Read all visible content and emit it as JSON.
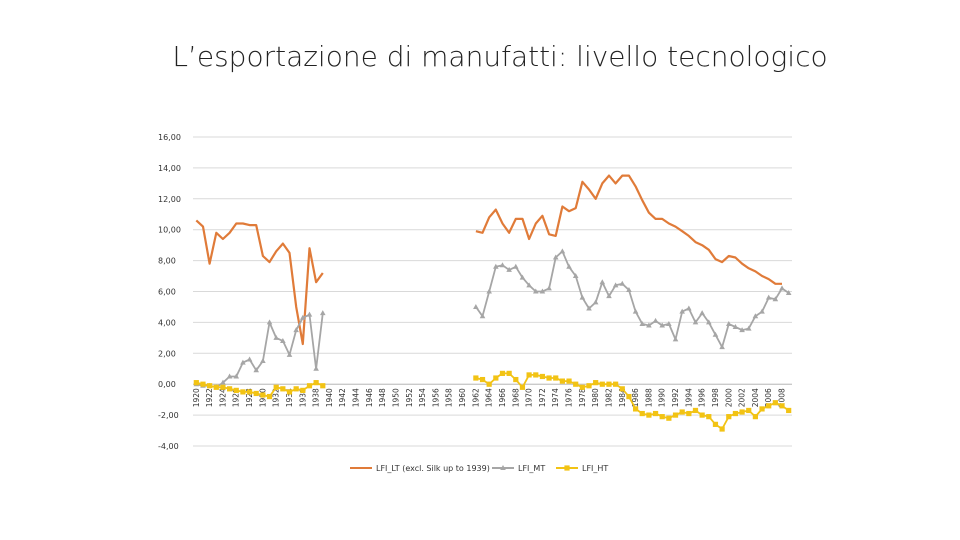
{
  "page": {
    "title": "L’esportazione di manufatti: livello tecnologico"
  },
  "chart_data": {
    "type": "line",
    "title": "L’esportazione di manufatti: livello tecnologico",
    "xlabel": "",
    "ylabel": "",
    "ylim": [
      -4,
      16
    ],
    "yticks": [
      -4,
      -2,
      0,
      2,
      4,
      6,
      8,
      10,
      12,
      14,
      16
    ],
    "ytick_labels": [
      "-4,00",
      "-2,00",
      "0,00",
      "2,00",
      "4,00",
      "6,00",
      "8,00",
      "10,00",
      "12,00",
      "14,00",
      "16,00"
    ],
    "xlim": [
      1920,
      2009
    ],
    "xtick_labels": [
      "1920",
      "1922",
      "1924",
      "1926",
      "1928",
      "1930",
      "1932",
      "1934",
      "1936",
      "1938",
      "1940",
      "1942",
      "1944",
      "1946",
      "1948",
      "1950",
      "1952",
      "1954",
      "1956",
      "1958",
      "1960",
      "1962",
      "1964",
      "1966",
      "1968",
      "1970",
      "1972",
      "1974",
      "1976",
      "1978",
      "1980",
      "1982",
      "1984",
      "1986",
      "1988",
      "1990",
      "1992",
      "1994",
      "1996",
      "1998",
      "2000",
      "2002",
      "2004",
      "2006",
      "2008"
    ],
    "colors": {
      "LT": "#e07b39",
      "MT": "#a6a6a6",
      "HT": "#f2c314",
      "axis": "#d9d9d9"
    },
    "series": [
      {
        "name": "LFI_LT (excl. Silk up to 1939)",
        "key": "LT",
        "marker": "none",
        "x": [
          1920,
          1921,
          1922,
          1923,
          1924,
          1925,
          1926,
          1927,
          1928,
          1929,
          1930,
          1931,
          1932,
          1933,
          1934,
          1935,
          1936,
          1937,
          1938,
          1939,
          1962,
          1963,
          1964,
          1965,
          1966,
          1967,
          1968,
          1969,
          1970,
          1971,
          1972,
          1973,
          1974,
          1975,
          1976,
          1977,
          1978,
          1979,
          1980,
          1981,
          1982,
          1983,
          1984,
          1985,
          1986,
          1987,
          1988,
          1989,
          1990,
          1991,
          1992,
          1993,
          1994,
          1995,
          1996,
          1997,
          1998,
          1999,
          2000,
          2001,
          2002,
          2003,
          2004,
          2005,
          2006,
          2007,
          2008
        ],
        "values": [
          10.6,
          10.2,
          7.8,
          9.8,
          9.4,
          9.8,
          10.4,
          10.4,
          10.3,
          10.3,
          8.3,
          7.9,
          8.6,
          9.1,
          8.5,
          5.0,
          2.6,
          8.8,
          6.6,
          7.2,
          9.9,
          9.8,
          10.8,
          11.3,
          10.4,
          9.8,
          10.7,
          10.7,
          9.4,
          10.4,
          10.9,
          9.7,
          9.6,
          11.5,
          11.2,
          11.4,
          13.1,
          12.6,
          12.0,
          13.0,
          13.5,
          13.0,
          13.5,
          13.5,
          12.8,
          11.9,
          11.1,
          10.7,
          10.7,
          10.4,
          10.2,
          9.9,
          9.6,
          9.2,
          9.0,
          8.7,
          8.1,
          7.9,
          8.3,
          8.2,
          7.8,
          7.5,
          7.3,
          7.0,
          6.8,
          6.5,
          6.5
        ],
        "gap_after": 1939
      },
      {
        "name": "LFI_MT",
        "key": "MT",
        "marker": "triangle",
        "x": [
          1920,
          1921,
          1922,
          1923,
          1924,
          1925,
          1926,
          1927,
          1928,
          1929,
          1930,
          1931,
          1932,
          1933,
          1934,
          1935,
          1936,
          1937,
          1938,
          1939,
          1962,
          1963,
          1964,
          1965,
          1966,
          1967,
          1968,
          1969,
          1970,
          1971,
          1972,
          1973,
          1974,
          1975,
          1976,
          1977,
          1978,
          1979,
          1980,
          1981,
          1982,
          1983,
          1984,
          1985,
          1986,
          1987,
          1988,
          1989,
          1990,
          1991,
          1992,
          1993,
          1994,
          1995,
          1996,
          1997,
          1998,
          1999,
          2000,
          2001,
          2002,
          2003,
          2004,
          2005,
          2006,
          2007,
          2008,
          2009
        ],
        "values": [
          0.0,
          -0.1,
          -0.1,
          -0.2,
          0.1,
          0.5,
          0.5,
          1.4,
          1.6,
          0.9,
          1.5,
          4.0,
          3.0,
          2.8,
          1.9,
          3.5,
          4.3,
          4.5,
          1.0,
          4.6,
          5.0,
          4.4,
          6.0,
          7.6,
          7.7,
          7.4,
          7.6,
          6.9,
          6.4,
          6.0,
          6.0,
          6.2,
          8.2,
          8.6,
          7.6,
          7.0,
          5.6,
          4.9,
          5.3,
          6.6,
          5.7,
          6.4,
          6.5,
          6.1,
          4.7,
          3.9,
          3.8,
          4.1,
          3.8,
          3.9,
          2.9,
          4.7,
          4.9,
          4.0,
          4.6,
          4.0,
          3.2,
          2.4,
          3.9,
          3.7,
          3.5,
          3.6,
          4.4,
          4.7,
          5.6,
          5.5,
          6.2,
          5.9
        ],
        "gap_after": 1939
      },
      {
        "name": "LFI_HT",
        "key": "HT",
        "marker": "square",
        "x": [
          1920,
          1921,
          1922,
          1923,
          1924,
          1925,
          1926,
          1927,
          1928,
          1929,
          1930,
          1931,
          1932,
          1933,
          1934,
          1935,
          1936,
          1937,
          1938,
          1939,
          1962,
          1963,
          1964,
          1965,
          1966,
          1967,
          1968,
          1969,
          1970,
          1971,
          1972,
          1973,
          1974,
          1975,
          1976,
          1977,
          1978,
          1979,
          1980,
          1981,
          1982,
          1983,
          1984,
          1985,
          1986,
          1987,
          1988,
          1989,
          1990,
          1991,
          1992,
          1993,
          1994,
          1995,
          1996,
          1997,
          1998,
          1999,
          2000,
          2001,
          2002,
          2003,
          2004,
          2005,
          2006,
          2007,
          2008,
          2009
        ],
        "values": [
          0.1,
          0.0,
          -0.1,
          -0.2,
          -0.2,
          -0.3,
          -0.4,
          -0.5,
          -0.5,
          -0.6,
          -0.7,
          -0.8,
          -0.2,
          -0.3,
          -0.5,
          -0.3,
          -0.4,
          -0.1,
          0.1,
          -0.1,
          0.4,
          0.3,
          0.0,
          0.4,
          0.7,
          0.7,
          0.3,
          -0.2,
          0.6,
          0.6,
          0.5,
          0.4,
          0.4,
          0.2,
          0.2,
          0.0,
          -0.2,
          -0.1,
          0.1,
          0.0,
          0.0,
          0.0,
          -0.3,
          -0.8,
          -1.6,
          -1.9,
          -2.0,
          -1.9,
          -2.1,
          -2.2,
          -2.0,
          -1.8,
          -1.9,
          -1.7,
          -2.0,
          -2.1,
          -2.6,
          -2.9,
          -2.1,
          -1.9,
          -1.8,
          -1.7,
          -2.1,
          -1.6,
          -1.4,
          -1.2,
          -1.4,
          -1.7
        ],
        "gap_after": 1939
      }
    ],
    "legend": {
      "placement": "bottom-center",
      "entries": [
        "LFI_LT (excl. Silk up to 1939)",
        "LFI_MT",
        "LFI_HT"
      ]
    }
  }
}
